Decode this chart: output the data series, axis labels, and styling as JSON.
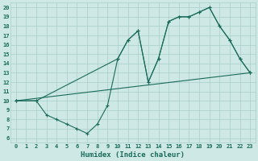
{
  "xlabel": "Humidex (Indice chaleur)",
  "bg_color": "#cde8e5",
  "grid_color": "#aacfcc",
  "line_color": "#1a6b5a",
  "xlim": [
    -0.5,
    23.5
  ],
  "ylim": [
    5.5,
    20.5
  ],
  "xticks": [
    0,
    1,
    2,
    3,
    4,
    5,
    6,
    7,
    8,
    9,
    10,
    11,
    12,
    13,
    14,
    15,
    16,
    17,
    18,
    19,
    20,
    21,
    22,
    23
  ],
  "yticks": [
    6,
    7,
    8,
    9,
    10,
    11,
    12,
    13,
    14,
    15,
    16,
    17,
    18,
    19,
    20
  ],
  "line1_x": [
    0,
    2,
    3,
    4,
    5,
    6,
    7,
    8,
    9,
    10,
    11,
    12,
    13,
    14,
    15,
    16,
    17,
    18,
    19,
    20,
    21,
    22,
    23
  ],
  "line1_y": [
    10,
    10,
    8.5,
    8.0,
    7.5,
    7.0,
    6.5,
    7.5,
    9.5,
    14.5,
    16.5,
    17.5,
    12.0,
    14.5,
    18.5,
    19.0,
    19.0,
    19.5,
    20.0,
    18.0,
    16.5,
    14.5,
    13.0
  ],
  "line2_x": [
    0,
    2,
    10,
    11,
    12,
    13,
    14,
    15,
    16,
    17,
    18,
    19,
    20,
    21,
    22,
    23
  ],
  "line2_y": [
    10,
    10,
    14.5,
    16.5,
    17.5,
    12.0,
    14.5,
    18.5,
    19.0,
    19.0,
    19.5,
    20.0,
    18.0,
    16.5,
    14.5,
    13.0
  ],
  "line3_x": [
    0,
    23
  ],
  "line3_y": [
    10,
    13
  ]
}
